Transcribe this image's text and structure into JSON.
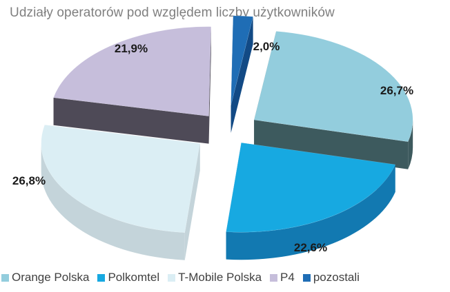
{
  "chart_data": {
    "type": "pie",
    "title": "Udziały operatorów pod względem liczby użytkowników",
    "categories": [
      "Orange Polska",
      "Polkomtel",
      "T-Mobile Polska",
      "P4",
      "pozostali"
    ],
    "values": [
      26.7,
      22.6,
      26.8,
      21.9,
      2.0
    ],
    "value_labels": [
      "26,7%",
      "22,6%",
      "26,8%",
      "21,9%",
      "2,0%"
    ],
    "colors": [
      "#93cddd",
      "#17a9e1",
      "#dbeef4",
      "#c6bedb",
      "#1f6db5"
    ],
    "side_colors": [
      "#3d5a5e",
      "#1279b1",
      "#c4d4da",
      "#4e4a57",
      "#124a85"
    ],
    "legend_position": "bottom",
    "style": "3d-exploded"
  }
}
